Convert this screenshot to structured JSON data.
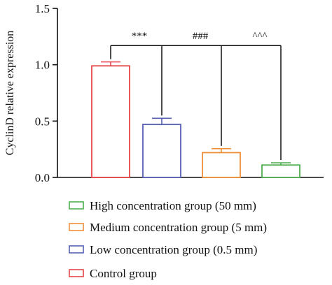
{
  "chart_data": {
    "type": "bar",
    "ylabel": "CyclinD relative expression",
    "ylim": [
      0,
      1.5
    ],
    "yticks": [
      "0.0",
      "0.5",
      "1.0",
      "1.5"
    ],
    "grid": false,
    "bar_fill": "#ffffff",
    "series": [
      {
        "name": "Control group",
        "value": 0.99,
        "error": 0.035,
        "color": "#e8454a"
      },
      {
        "name": "Low concentration group (0.5 mm)",
        "value": 0.47,
        "error": 0.055,
        "color": "#5561b0"
      },
      {
        "name": "Medium concentration group (5 mm)",
        "value": 0.22,
        "error": 0.035,
        "color": "#ee8f3a"
      },
      {
        "name": "High concentration group (50 mm)",
        "value": 0.11,
        "error": 0.02,
        "color": "#4fae4f"
      }
    ],
    "significance": {
      "reference": "Control group",
      "bracket_y": 1.17,
      "marks": [
        {
          "target": "Low concentration group (0.5 mm)",
          "label": "***"
        },
        {
          "target": "Medium concentration group (5 mm)",
          "label": "###"
        },
        {
          "target": "High concentration group (50 mm)",
          "label": "^^^"
        }
      ]
    },
    "legend": {
      "placement": "bottom",
      "order": [
        "High concentration group (50 mm)",
        "Medium concentration group (5 mm)",
        "Low concentration group (0.5 mm)",
        "Control group"
      ]
    }
  }
}
